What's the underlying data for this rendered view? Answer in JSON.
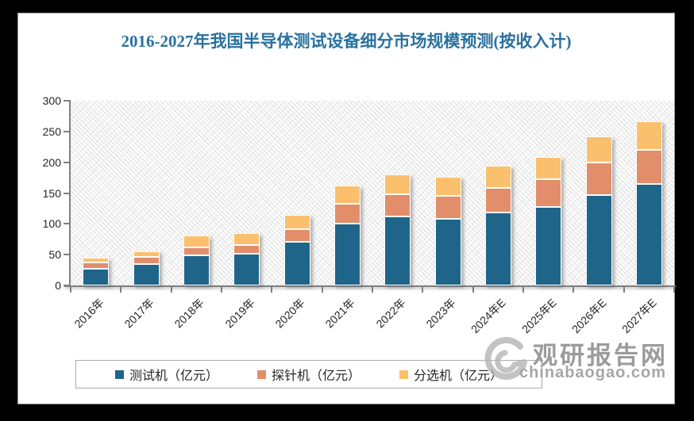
{
  "title": "2016-2027年我国半导体测试设备细分市场规模预测(按收入计)",
  "chart_data": {
    "type": "bar",
    "stacked": true,
    "categories": [
      "2016年",
      "2017年",
      "2018年",
      "2019年",
      "2020年",
      "2021年",
      "2022年",
      "2023年",
      "2024年E",
      "2025年E",
      "2026年E",
      "2027年E"
    ],
    "series": [
      {
        "name": "测试机（亿元）",
        "color": "#1f658a",
        "values": [
          27,
          35,
          49,
          51,
          71,
          100,
          112,
          108,
          119,
          128,
          147,
          165
        ]
      },
      {
        "name": "探针机（亿元）",
        "color": "#e28e6a",
        "values": [
          10,
          11,
          13,
          15,
          21,
          32,
          36,
          37,
          40,
          44,
          52,
          55
        ]
      },
      {
        "name": "分选机（亿元）",
        "color": "#fbc06e",
        "values": [
          8,
          10,
          19,
          19,
          23,
          30,
          32,
          31,
          35,
          36,
          43,
          46
        ]
      }
    ],
    "ylim": [
      0,
      300
    ],
    "yticks": [
      0,
      50,
      100,
      150,
      200,
      250,
      300
    ],
    "grid": false,
    "legend_position": "bottom",
    "plot_background": "diagonal-hatch"
  },
  "watermark": {
    "site_name": "观研报告网",
    "site_url": "chinabaogao.com"
  }
}
